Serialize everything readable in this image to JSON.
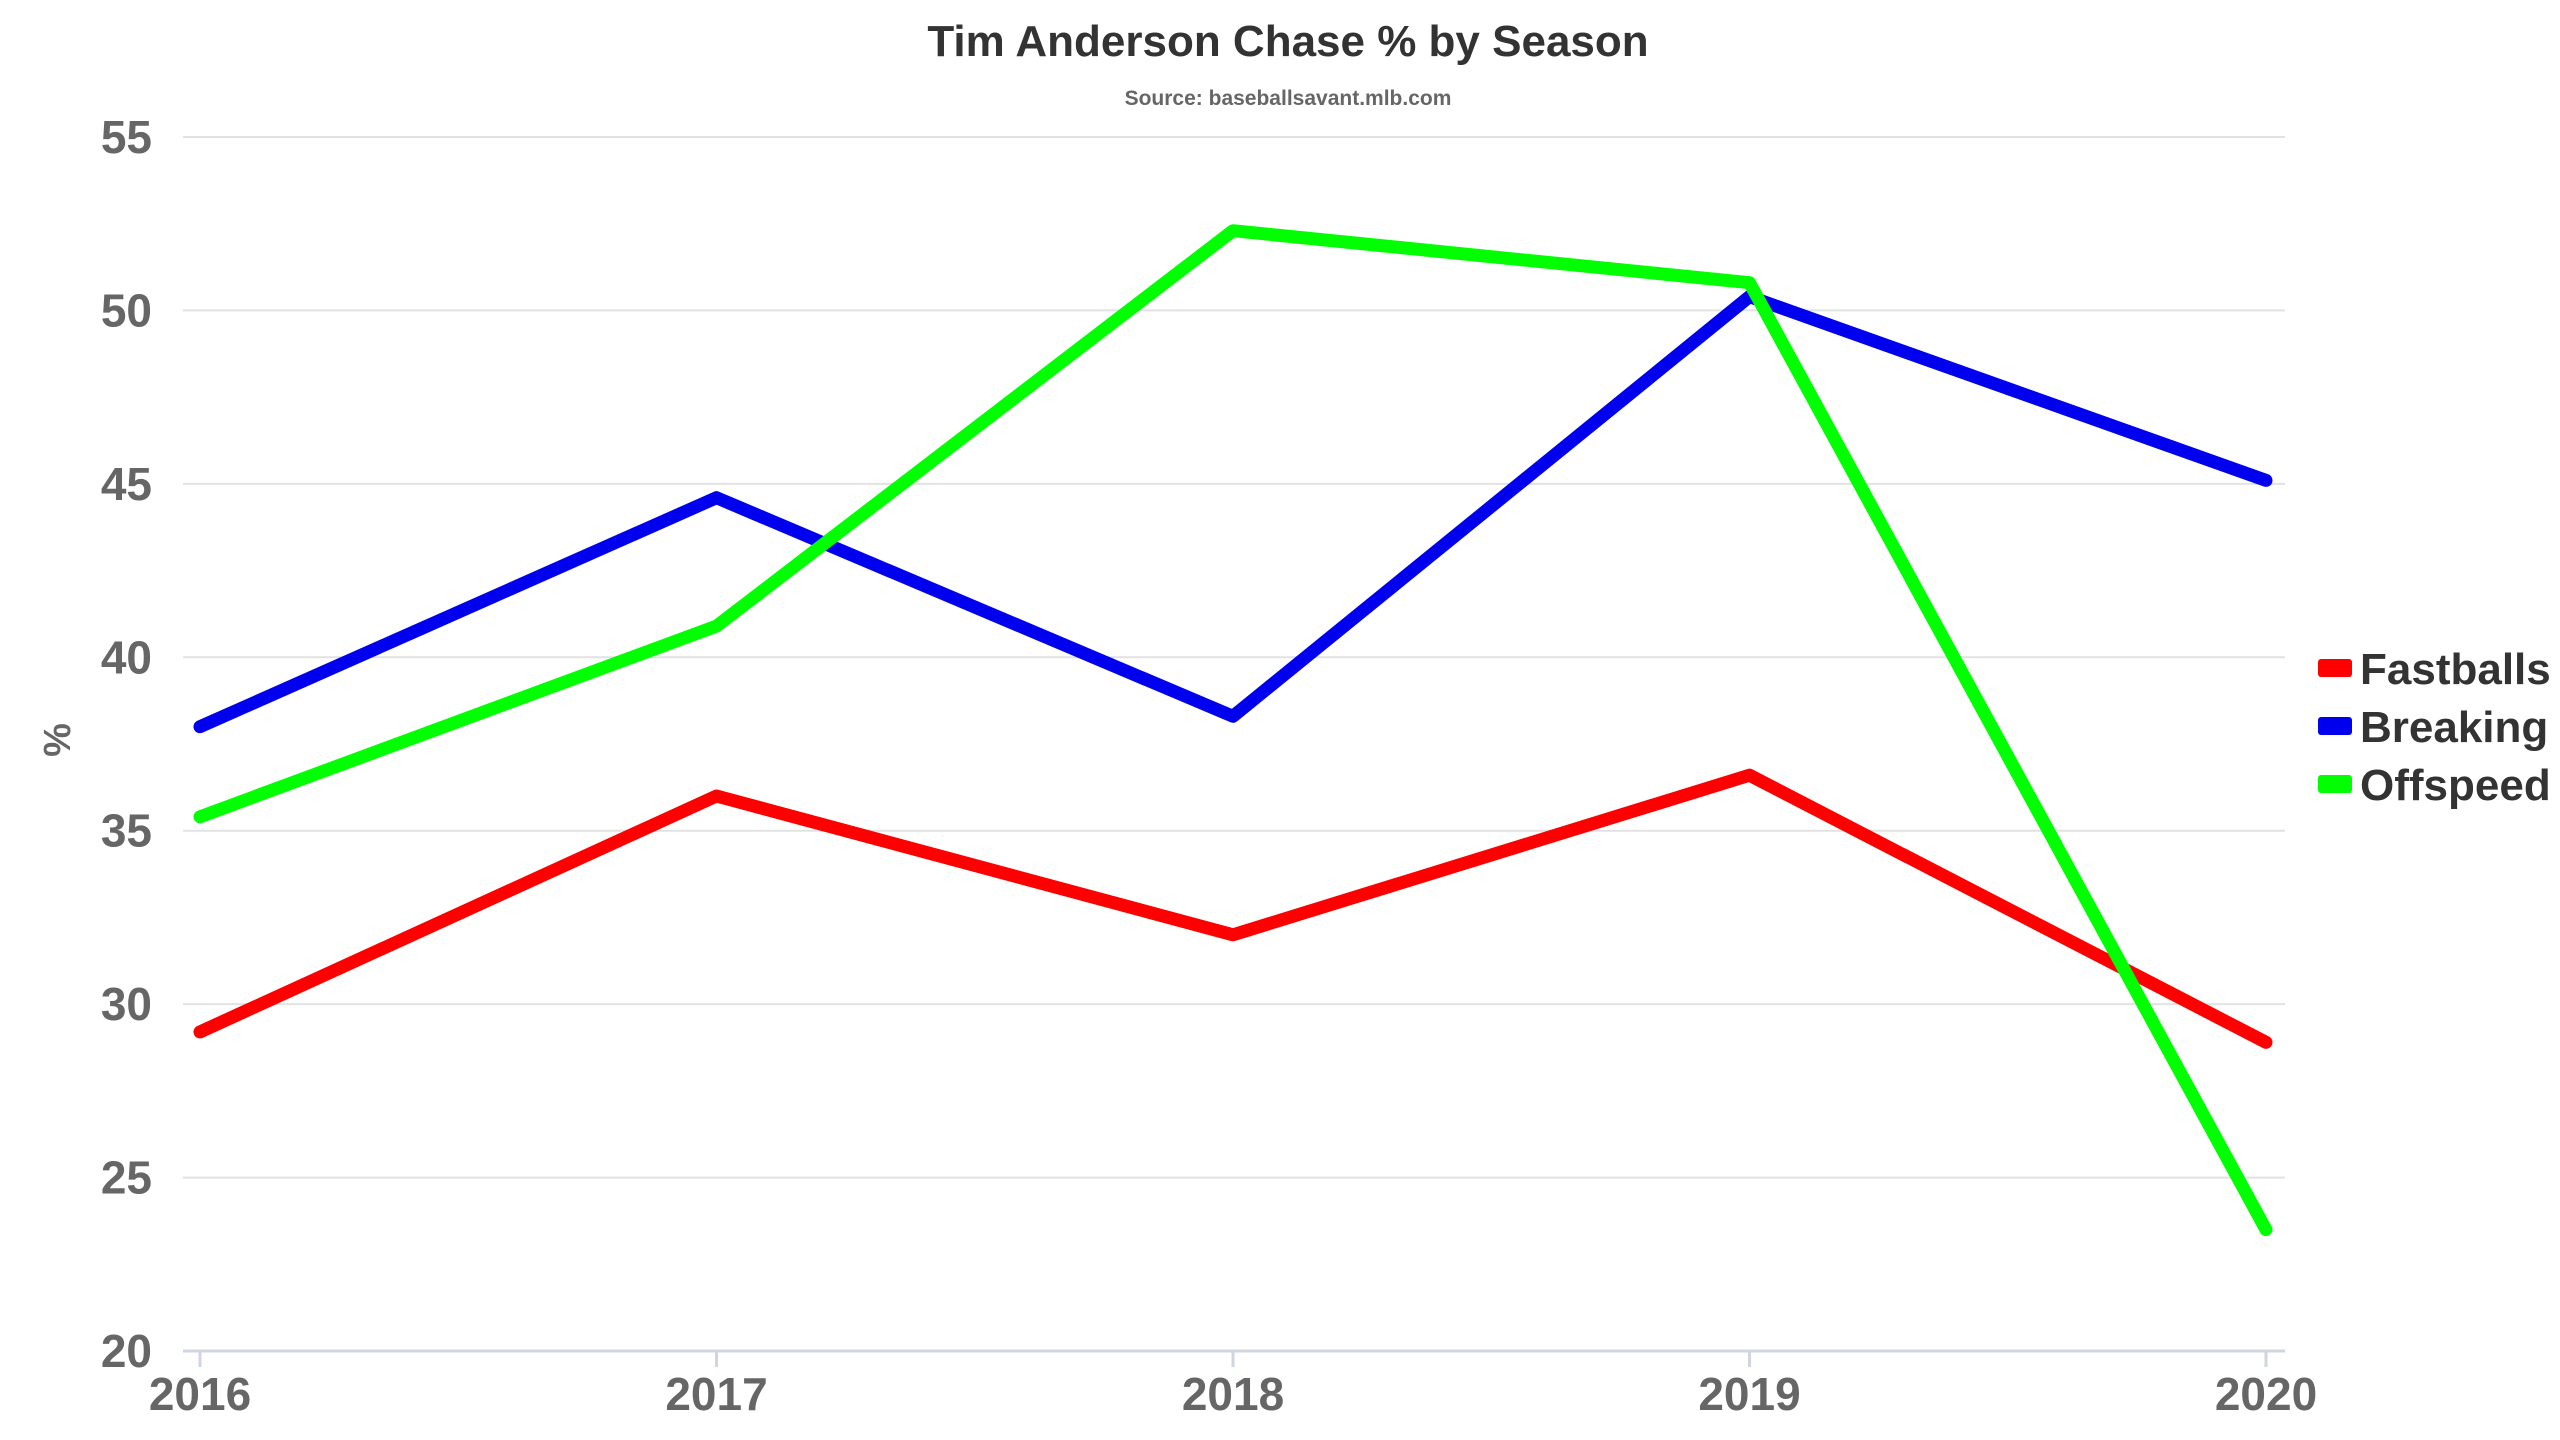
{
  "chart_data": {
    "type": "line",
    "title": "Tim Anderson Chase % by Season",
    "subtitle": "Source: baseballsavant.mlb.com",
    "xlabel": "",
    "ylabel": "%",
    "categories": [
      "2016",
      "2017",
      "2018",
      "2019",
      "2020"
    ],
    "y_ticks": [
      "20",
      "25",
      "30",
      "35",
      "40",
      "45",
      "50",
      "55"
    ],
    "ylim": [
      20,
      55
    ],
    "grid": true,
    "legend_position": "right",
    "series": [
      {
        "name": "Fastballs",
        "color": "#ff0000",
        "values": [
          29.2,
          36.0,
          32.0,
          36.6,
          28.9
        ]
      },
      {
        "name": "Breaking",
        "color": "#0000ee",
        "values": [
          38.0,
          44.6,
          38.3,
          50.4,
          45.1
        ]
      },
      {
        "name": "Offspeed",
        "color": "#00ff00",
        "values": [
          35.4,
          40.9,
          52.3,
          50.8,
          23.5
        ]
      }
    ]
  }
}
